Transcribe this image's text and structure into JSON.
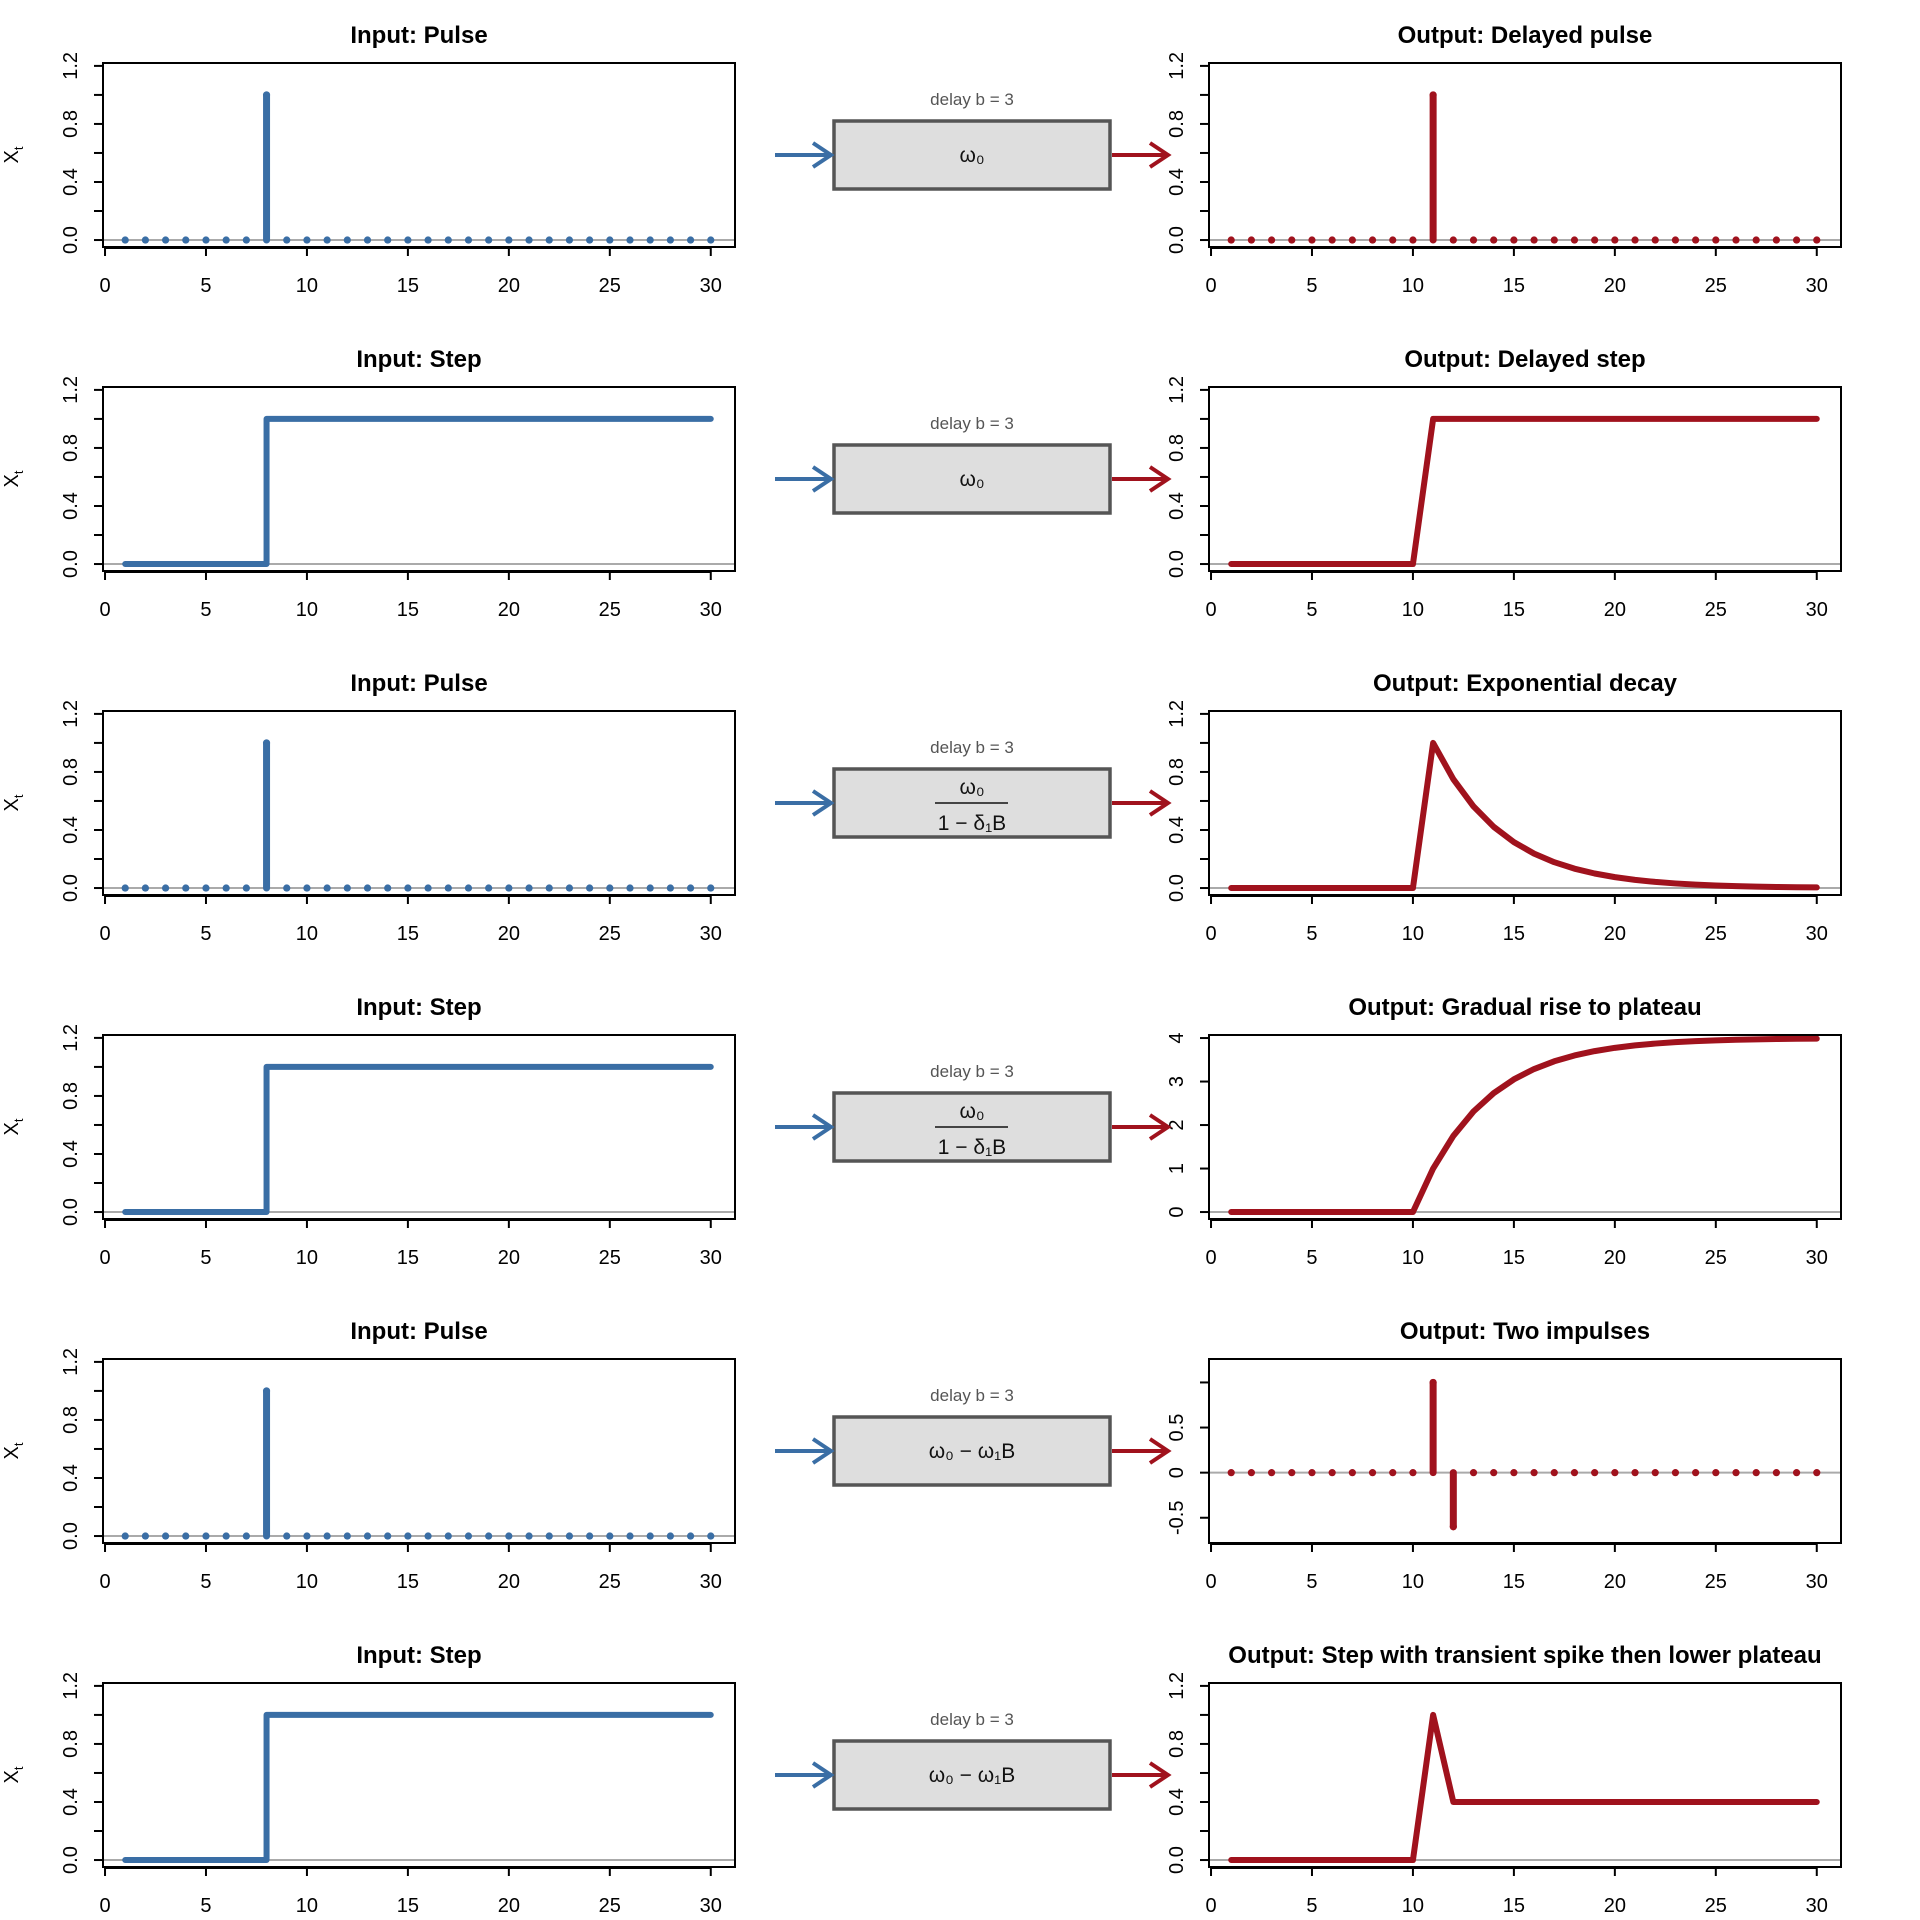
{
  "colors": {
    "input": "#3a6ea5",
    "output": "#a0121d",
    "zero_line": "#aaaaaa",
    "box_fill": "#dedede",
    "box_stroke": "#555555"
  },
  "y_label": "X",
  "y_label_sub": "t",
  "chart_data": {
    "type": "line",
    "x": [
      1,
      2,
      3,
      4,
      5,
      6,
      7,
      8,
      9,
      10,
      11,
      12,
      13,
      14,
      15,
      16,
      17,
      18,
      19,
      20,
      21,
      22,
      23,
      24,
      25,
      26,
      27,
      28,
      29,
      30
    ],
    "x_ticks": [
      "0",
      "5",
      "10",
      "15",
      "20",
      "25",
      "30"
    ],
    "rows": [
      {
        "input": {
          "title": "Input: Pulse",
          "kind": "pulse",
          "values": [
            0,
            0,
            0,
            0,
            0,
            0,
            0,
            1,
            0,
            0,
            0,
            0,
            0,
            0,
            0,
            0,
            0,
            0,
            0,
            0,
            0,
            0,
            0,
            0,
            0,
            0,
            0,
            0,
            0,
            0
          ],
          "ylim": [
            0,
            1.2
          ],
          "y_ticks": [
            "0.0",
            "0.4",
            "0.8",
            "1.2"
          ]
        },
        "transfer": {
          "delay_label": "delay b = 3",
          "numerator": "ω₀",
          "denominator": ""
        },
        "output": {
          "title": "Output: Delayed pulse",
          "kind": "pulse",
          "values": [
            0,
            0,
            0,
            0,
            0,
            0,
            0,
            0,
            0,
            0,
            1,
            0,
            0,
            0,
            0,
            0,
            0,
            0,
            0,
            0,
            0,
            0,
            0,
            0,
            0,
            0,
            0,
            0,
            0,
            0
          ],
          "ylim": [
            0,
            1.2
          ],
          "y_ticks": [
            "0.0",
            "0.4",
            "0.8",
            "1.2"
          ]
        }
      },
      {
        "input": {
          "title": "Input: Step",
          "kind": "step",
          "values": [
            0,
            0,
            0,
            0,
            0,
            0,
            0,
            1,
            1,
            1,
            1,
            1,
            1,
            1,
            1,
            1,
            1,
            1,
            1,
            1,
            1,
            1,
            1,
            1,
            1,
            1,
            1,
            1,
            1,
            1
          ],
          "ylim": [
            0,
            1.2
          ],
          "y_ticks": [
            "0.0",
            "0.4",
            "0.8",
            "1.2"
          ]
        },
        "transfer": {
          "delay_label": "delay b = 3",
          "numerator": "ω₀",
          "denominator": ""
        },
        "output": {
          "title": "Output: Delayed step",
          "kind": "line",
          "values": [
            0,
            0,
            0,
            0,
            0,
            0,
            0,
            0,
            0,
            0,
            1,
            1,
            1,
            1,
            1,
            1,
            1,
            1,
            1,
            1,
            1,
            1,
            1,
            1,
            1,
            1,
            1,
            1,
            1,
            1
          ],
          "ylim": [
            0,
            1.2
          ],
          "y_ticks": [
            "0.0",
            "0.4",
            "0.8",
            "1.2"
          ]
        }
      },
      {
        "input": {
          "title": "Input: Pulse",
          "kind": "pulse",
          "values": [
            0,
            0,
            0,
            0,
            0,
            0,
            0,
            1,
            0,
            0,
            0,
            0,
            0,
            0,
            0,
            0,
            0,
            0,
            0,
            0,
            0,
            0,
            0,
            0,
            0,
            0,
            0,
            0,
            0,
            0
          ],
          "ylim": [
            0,
            1.2
          ],
          "y_ticks": [
            "0.0",
            "0.4",
            "0.8",
            "1.2"
          ]
        },
        "transfer": {
          "delay_label": "delay b = 3",
          "numerator": "ω₀",
          "denominator": "1 − δ₁B"
        },
        "output": {
          "title": "Output: Exponential decay",
          "kind": "line",
          "values": [
            0,
            0,
            0,
            0,
            0,
            0,
            0,
            0,
            0,
            0,
            1,
            0.75,
            0.5625,
            0.4219,
            0.3164,
            0.2373,
            0.178,
            0.1335,
            0.1001,
            0.0751,
            0.0563,
            0.0422,
            0.0317,
            0.0238,
            0.0178,
            0.0134,
            0.01,
            0.0075,
            0.0056,
            0.0042
          ],
          "ylim": [
            0,
            1.2
          ],
          "y_ticks": [
            "0.0",
            "0.4",
            "0.8",
            "1.2"
          ]
        }
      },
      {
        "input": {
          "title": "Input: Step",
          "kind": "step",
          "values": [
            0,
            0,
            0,
            0,
            0,
            0,
            0,
            1,
            1,
            1,
            1,
            1,
            1,
            1,
            1,
            1,
            1,
            1,
            1,
            1,
            1,
            1,
            1,
            1,
            1,
            1,
            1,
            1,
            1,
            1
          ],
          "ylim": [
            0,
            1.2
          ],
          "y_ticks": [
            "0.0",
            "0.4",
            "0.8",
            "1.2"
          ]
        },
        "transfer": {
          "delay_label": "delay b = 3",
          "numerator": "ω₀",
          "denominator": "1 − δ₁B"
        },
        "output": {
          "title": "Output: Gradual rise to plateau",
          "kind": "line",
          "values": [
            0,
            0,
            0,
            0,
            0,
            0,
            0,
            0,
            0,
            0,
            1,
            1.75,
            2.3125,
            2.7344,
            3.0508,
            3.2881,
            3.4661,
            3.5996,
            3.6997,
            3.7748,
            3.8311,
            3.8733,
            3.905,
            3.9288,
            3.9466,
            3.96,
            3.97,
            3.9775,
            3.9831,
            3.9873
          ],
          "ylim": [
            0,
            4
          ],
          "y_ticks": [
            "0",
            "1",
            "2",
            "3",
            "4"
          ]
        }
      },
      {
        "input": {
          "title": "Input: Pulse",
          "kind": "pulse",
          "values": [
            0,
            0,
            0,
            0,
            0,
            0,
            0,
            1,
            0,
            0,
            0,
            0,
            0,
            0,
            0,
            0,
            0,
            0,
            0,
            0,
            0,
            0,
            0,
            0,
            0,
            0,
            0,
            0,
            0,
            0
          ],
          "ylim": [
            0,
            1.2
          ],
          "y_ticks": [
            "0.0",
            "0.4",
            "0.8",
            "1.2"
          ]
        },
        "transfer": {
          "delay_label": "delay b = 3",
          "numerator": "ω₀ − ω₁B",
          "denominator": ""
        },
        "output": {
          "title": "Output: Two impulses",
          "kind": "pulse",
          "values": [
            0,
            0,
            0,
            0,
            0,
            0,
            0,
            0,
            0,
            0,
            1,
            -0.6,
            0,
            0,
            0,
            0,
            0,
            0,
            0,
            0,
            0,
            0,
            0,
            0,
            0,
            0,
            0,
            0,
            0,
            0
          ],
          "ylim": [
            -0.6,
            1.0
          ],
          "y_ticks": [
            "-0.5",
            "0",
            "0.5",
            ""
          ]
        }
      },
      {
        "input": {
          "title": "Input: Step",
          "kind": "step",
          "values": [
            0,
            0,
            0,
            0,
            0,
            0,
            0,
            1,
            1,
            1,
            1,
            1,
            1,
            1,
            1,
            1,
            1,
            1,
            1,
            1,
            1,
            1,
            1,
            1,
            1,
            1,
            1,
            1,
            1,
            1
          ],
          "ylim": [
            0,
            1.2
          ],
          "y_ticks": [
            "0.0",
            "0.4",
            "0.8",
            "1.2"
          ]
        },
        "transfer": {
          "delay_label": "delay b = 3",
          "numerator": "ω₀ − ω₁B",
          "denominator": ""
        },
        "output": {
          "title": "Output: Step with transient spike then lower plateau",
          "kind": "line",
          "values": [
            0,
            0,
            0,
            0,
            0,
            0,
            0,
            0,
            0,
            0,
            1,
            0.4,
            0.4,
            0.4,
            0.4,
            0.4,
            0.4,
            0.4,
            0.4,
            0.4,
            0.4,
            0.4,
            0.4,
            0.4,
            0.4,
            0.4,
            0.4,
            0.4,
            0.4,
            0.4
          ],
          "ylim": [
            0,
            1.2
          ],
          "y_ticks": [
            "0.0",
            "0.4",
            "0.8",
            "1.2"
          ]
        }
      }
    ]
  }
}
